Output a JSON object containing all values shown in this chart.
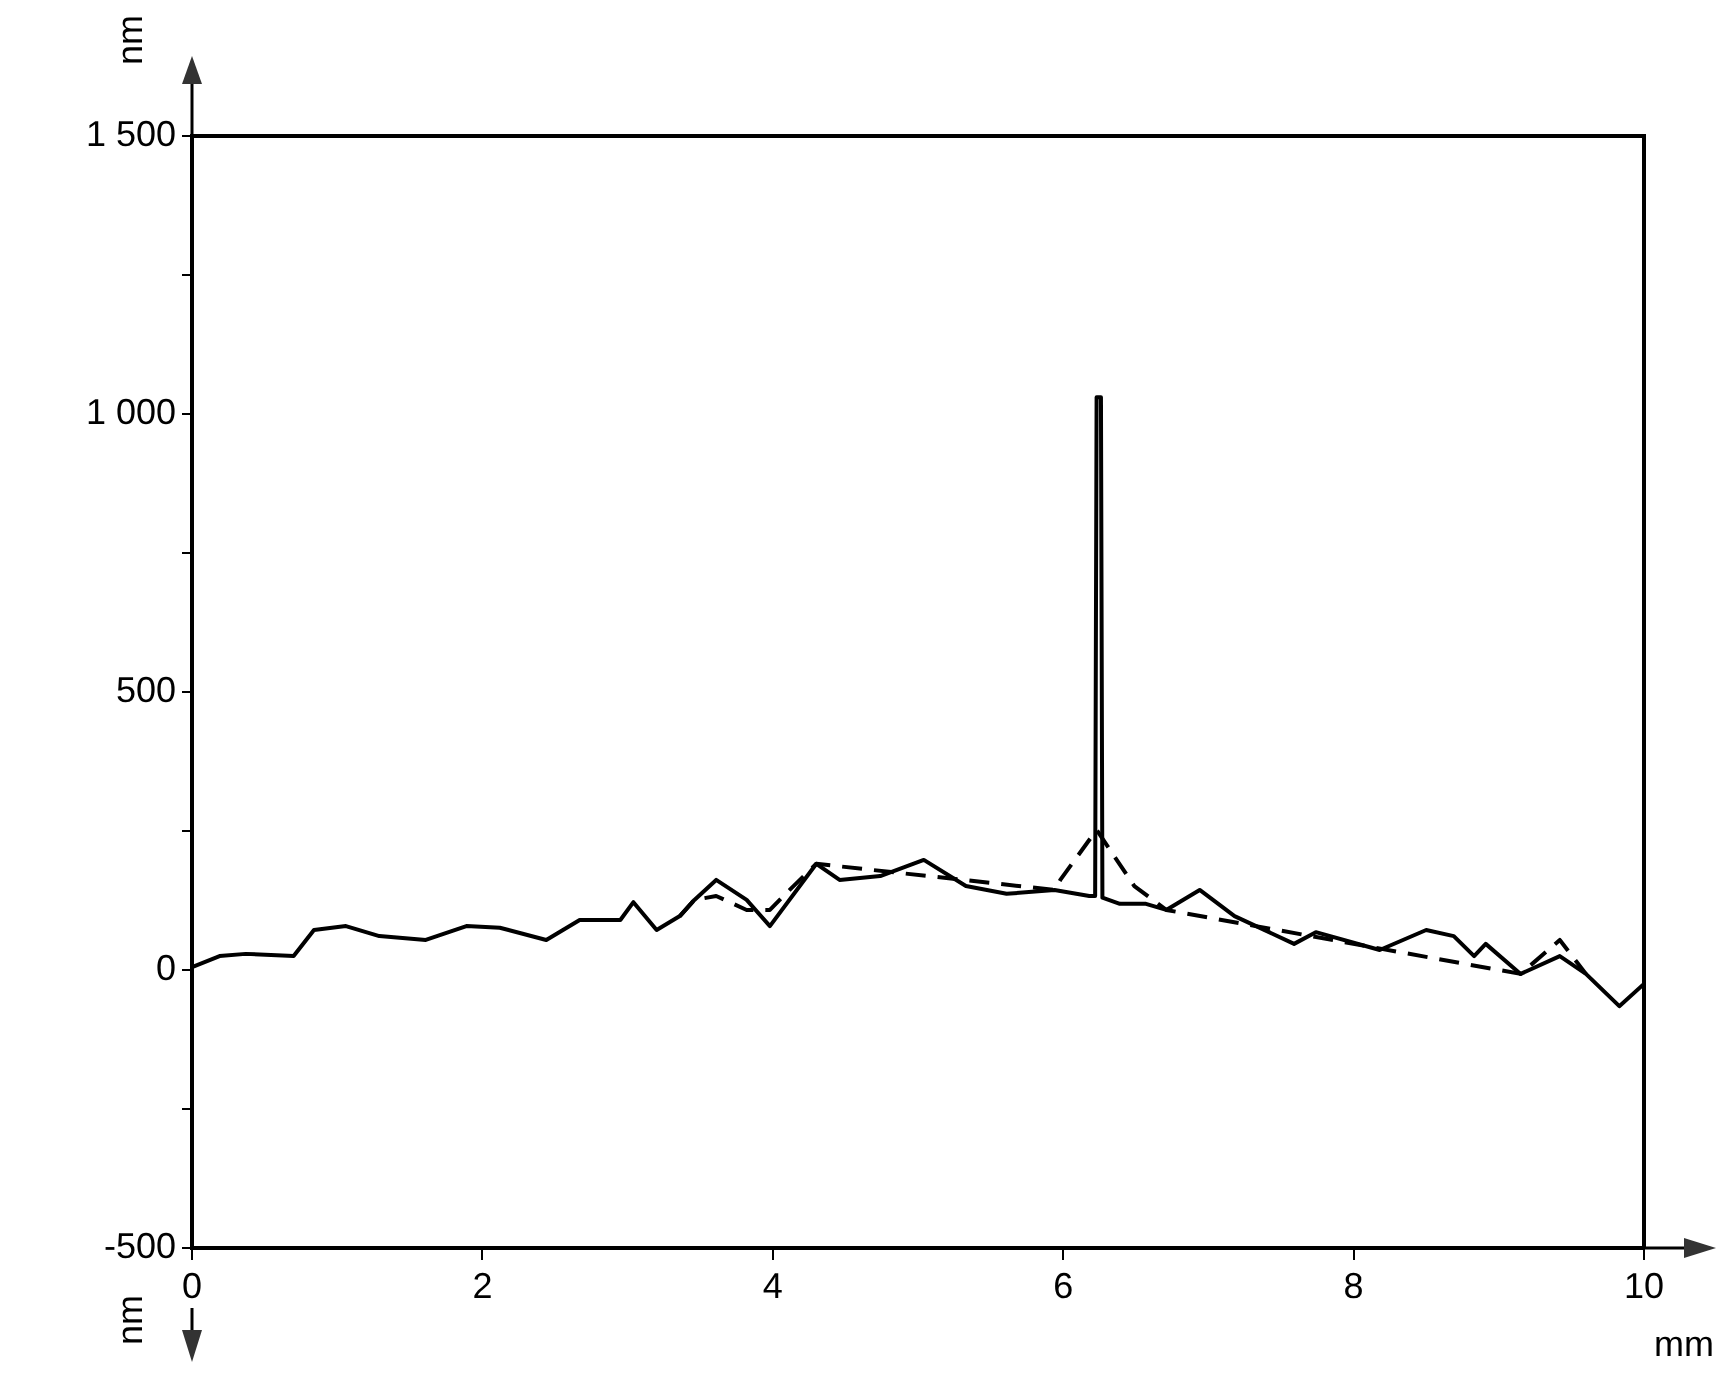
{
  "chart_data": {
    "type": "line",
    "xlabel": "mm",
    "ylabel": "nm",
    "annotations": [
      "nm"
    ],
    "xlim": [
      0,
      10
    ],
    "xticks": [
      0,
      2,
      4,
      6,
      8,
      10
    ],
    "ylim": [
      -500,
      1500
    ],
    "yticks": [
      {
        "value": -500,
        "label": "-500"
      },
      {
        "value": -250,
        "label": null
      },
      {
        "value": 0,
        "label": "0"
      },
      {
        "value": 250,
        "label": null
      },
      {
        "value": 500,
        "label": "500"
      },
      {
        "value": 750,
        "label": null
      },
      {
        "value": 1000,
        "label": "1 000"
      },
      {
        "value": 1250,
        "label": null
      },
      {
        "value": 1500,
        "label": "1 500"
      }
    ],
    "grid": false,
    "legend": false,
    "marker": "none",
    "series": [
      {
        "color": "#000000",
        "line_style": "solid",
        "x": [
          0,
          0.19,
          0.37,
          0.7,
          0.84,
          1.06,
          1.29,
          1.61,
          1.89,
          2.12,
          2.44,
          2.67,
          2.95,
          3.04,
          3.2,
          3.36,
          3.46,
          3.61,
          3.82,
          3.98,
          4.3,
          4.46,
          4.74,
          5.04,
          5.33,
          5.61,
          5.94,
          6.18,
          6.22,
          6.23,
          6.26,
          6.27,
          6.39,
          6.57,
          6.71,
          6.94,
          7.18,
          7.59,
          7.74,
          8.18,
          8.5,
          8.69,
          8.83,
          8.91,
          9.15,
          9.42,
          9.6,
          9.83,
          10
        ],
        "values": [
          5,
          25,
          29,
          25,
          72,
          79,
          61,
          54,
          79,
          76,
          54,
          90,
          90,
          122,
          72,
          97,
          126,
          162,
          126,
          79,
          191,
          162,
          169,
          198,
          151,
          137,
          144,
          133,
          133,
          1030,
          1030,
          130,
          119,
          119,
          108,
          144,
          97,
          47,
          68,
          36,
          72,
          61,
          25,
          47,
          -7,
          25,
          -7,
          -65,
          -25
        ]
      },
      {
        "color": "#000000",
        "line_style": "dashed",
        "x": [
          3.36,
          3.46,
          3.61,
          3.82,
          3.98,
          4.1,
          4.3,
          5.94,
          5.98,
          6.23,
          6.49,
          6.71,
          9.15,
          9.42,
          9.6
        ],
        "values": [
          97,
          126,
          133,
          108,
          108,
          140,
          191,
          144,
          162,
          252,
          151,
          108,
          -7,
          54,
          -7
        ]
      }
    ]
  }
}
